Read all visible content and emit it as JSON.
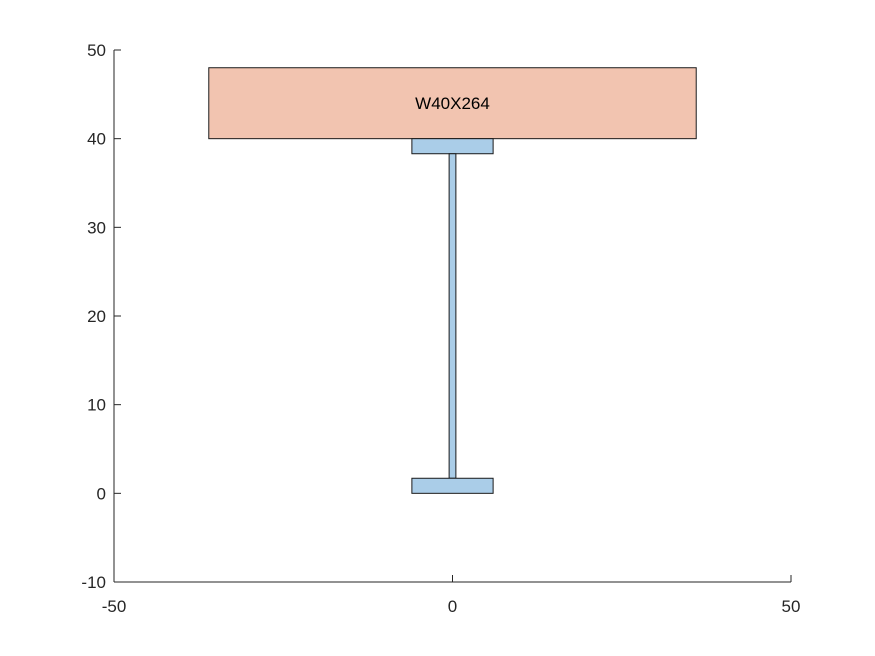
{
  "chart_data": {
    "type": "diagram",
    "title": "",
    "xlabel": "",
    "ylabel": "",
    "xlim": [
      -50,
      50
    ],
    "ylim": [
      -10,
      50
    ],
    "x_ticks": [
      -50,
      0,
      50
    ],
    "x_tick_labels": [
      "-50",
      "0",
      "50"
    ],
    "y_ticks": [
      50,
      40,
      30,
      20,
      10,
      0,
      -10
    ],
    "y_tick_labels": [
      "50",
      "40",
      "30",
      "20",
      "10",
      "0",
      "-10"
    ],
    "grid": false,
    "shapes": [
      {
        "name": "concrete-slab",
        "x": [
          -36,
          36
        ],
        "y": [
          40,
          48
        ],
        "fill": "#f2c4b0",
        "label": "W40X264"
      },
      {
        "name": "top-flange",
        "x": [
          -6,
          6
        ],
        "y": [
          38.3,
          40
        ],
        "fill": "#aacde8"
      },
      {
        "name": "web",
        "x": [
          -0.5,
          0.5
        ],
        "y": [
          1.7,
          38.3
        ],
        "fill": "#aacde8"
      },
      {
        "name": "bottom-flange",
        "x": [
          -6,
          6
        ],
        "y": [
          0,
          1.7
        ],
        "fill": "#aacde8"
      }
    ]
  }
}
